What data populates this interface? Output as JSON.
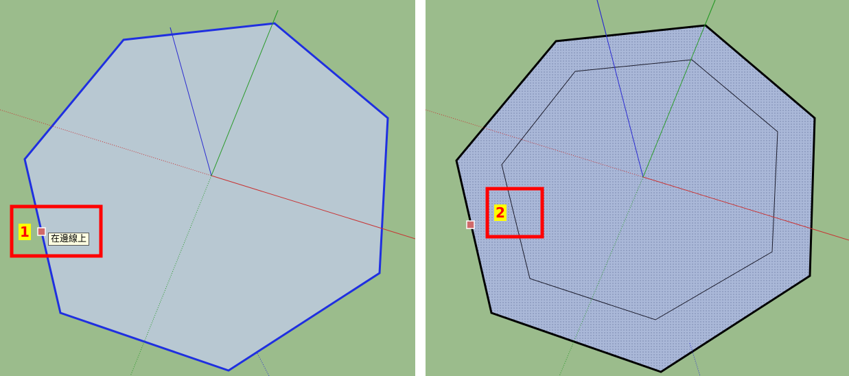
{
  "colors": {
    "ground": "#9bbc8c",
    "face_fill": "#b8c8d2",
    "face_fill_selected": "#aab8d8",
    "selected_edge": "#1f2fe0",
    "edge": "#000000",
    "axis_red": "#c83232",
    "axis_green": "#2a9a2a",
    "axis_blue": "#2a2ad0",
    "highlight_box": "#ff0000",
    "step_label_bg": "#ffff00",
    "step_label_text": "#ff0000",
    "tooltip_bg": "#ffffe1",
    "inference_marker": "#d06a6a"
  },
  "panels": [
    {
      "id": "left",
      "step_label": "1",
      "tooltip": "在邊線上",
      "inference_icon": "on-edge-marker-icon",
      "state": "polygon edge selected"
    },
    {
      "id": "right",
      "step_label": "2",
      "inference_icon": "on-edge-marker-icon",
      "state": "offset polygon created, face selected"
    }
  ]
}
